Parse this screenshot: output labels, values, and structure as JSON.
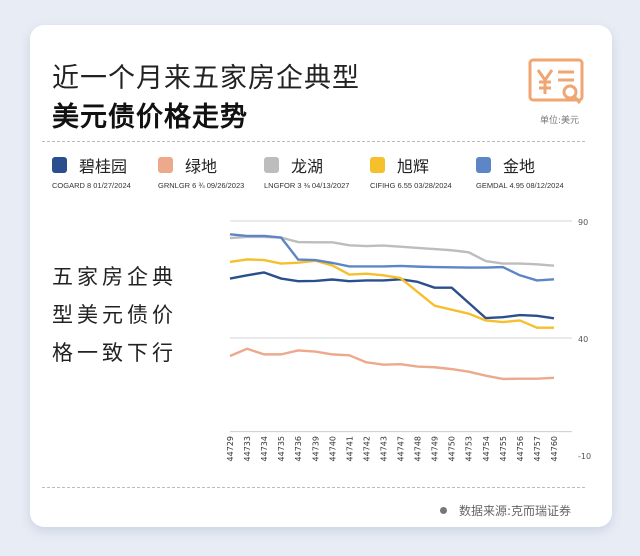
{
  "title_line1": "近一个月来五家房企典型",
  "title_line2": "美元债价格走势",
  "unit": "单位:美元",
  "side_text": "五家房企典型美元债价格一致下行",
  "source": "数据来源:克而瑞证券",
  "icon": "yuan-receipt-search-icon",
  "chart_data": {
    "type": "line",
    "categories": [
      "44729",
      "44733",
      "44734",
      "44735",
      "44736",
      "44739",
      "44740",
      "44741",
      "44742",
      "44743",
      "44747",
      "44748",
      "44749",
      "44750",
      "44753",
      "44754",
      "44755",
      "44756",
      "44757",
      "44760"
    ],
    "ylim": [
      -10,
      90
    ],
    "yticks": [
      "90",
      "40",
      "-10"
    ],
    "legend_position": "top",
    "series": [
      {
        "name": "碧桂园",
        "bond": "COGARD 8 01/27/2024",
        "color": "#2b4f8e",
        "values": [
          65.4,
          66.8,
          68.0,
          65.4,
          64.3,
          64.4,
          65.0,
          64.3,
          64.6,
          64.6,
          65.1,
          64.0,
          61.5,
          61.5,
          55.0,
          48.5,
          48.9,
          49.8,
          49.5,
          48.4
        ]
      },
      {
        "name": "绿地",
        "bond": "GRNLGR 6 ¾ 09/26/2023",
        "color": "#eca98c",
        "values": [
          32.3,
          35.4,
          33.0,
          33.0,
          34.7,
          34.2,
          33.0,
          32.6,
          29.6,
          28.6,
          28.8,
          27.8,
          27.5,
          26.7,
          25.6,
          23.9,
          22.5,
          22.6,
          22.6,
          23.0
        ]
      },
      {
        "name": "龙湖",
        "bond": "LNGFOR 3 ⅜ 04/13/2027",
        "color": "#bdbdbd",
        "values": [
          82.7,
          83.2,
          83.2,
          82.9,
          81.0,
          80.9,
          80.9,
          79.6,
          79.3,
          79.5,
          79.0,
          78.5,
          78.0,
          77.5,
          76.6,
          72.9,
          71.8,
          71.8,
          71.5,
          70.9
        ]
      },
      {
        "name": "旭辉",
        "bond": "CIFIHG 6.55 03/28/2024",
        "color": "#f6bf2c",
        "values": [
          72.5,
          73.6,
          73.3,
          71.8,
          72.2,
          73.0,
          71.0,
          67.1,
          67.5,
          66.8,
          65.6,
          59.7,
          53.8,
          52.1,
          50.4,
          47.5,
          46.8,
          47.5,
          44.4,
          44.4
        ]
      },
      {
        "name": "金地",
        "bond": "GEMDAL 4.95 08/12/2024",
        "color": "#5d86c6",
        "values": [
          84.3,
          83.6,
          83.6,
          82.9,
          73.5,
          73.3,
          72.1,
          70.6,
          70.6,
          70.6,
          70.8,
          70.5,
          70.3,
          70.2,
          70.1,
          70.1,
          70.3,
          66.8,
          64.6,
          65.1
        ]
      }
    ]
  }
}
